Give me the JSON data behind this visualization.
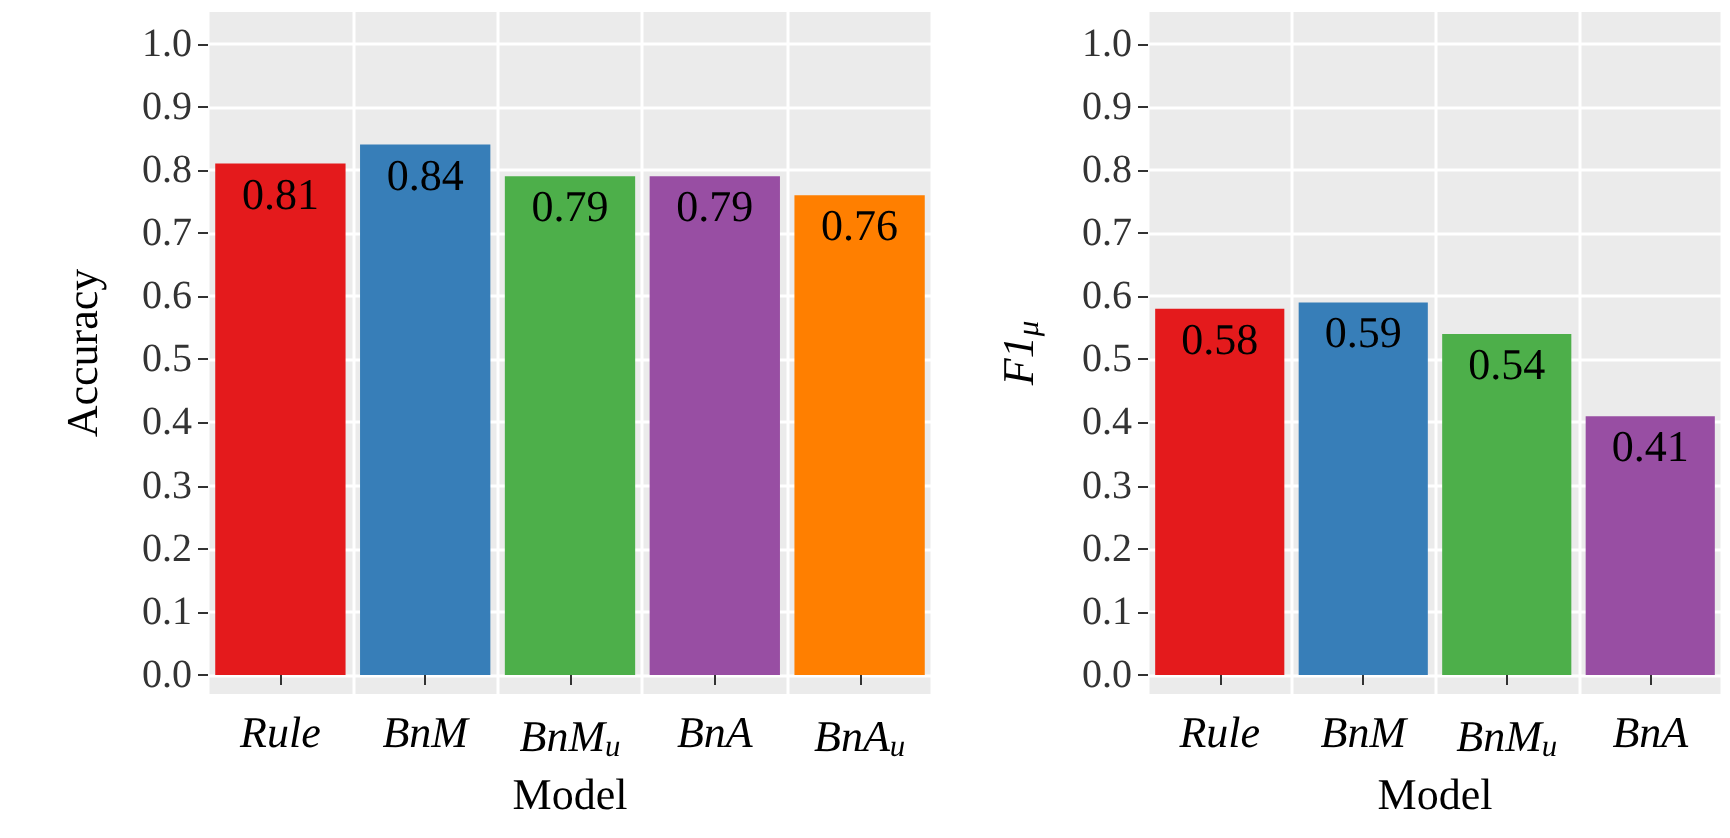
{
  "chart_data": [
    {
      "type": "bar",
      "xlabel": "Model",
      "ylabel": "Accuracy",
      "categories": [
        "Rule",
        "BnM",
        "BnM$_{u}$",
        "BnA",
        "BnA$_{u}$"
      ],
      "values": [
        0.81,
        0.84,
        0.79,
        0.79,
        0.76
      ],
      "colors": [
        "#e41a1c",
        "#377eb8",
        "#4daf4a",
        "#984ea3",
        "#ff7f00"
      ],
      "ylim": [
        -0.03,
        1.05
      ],
      "yticks": [
        {
          "value": 0,
          "label": "0.0"
        },
        {
          "value": 0.1,
          "label": "0.1"
        },
        {
          "value": 0.2,
          "label": "0.2"
        },
        {
          "value": 0.3,
          "label": "0.3"
        },
        {
          "value": 0.4,
          "label": "0.4"
        },
        {
          "value": 0.5,
          "label": "0.5"
        },
        {
          "value": 0.6,
          "label": "0.6"
        },
        {
          "value": 0.7,
          "label": "0.7"
        },
        {
          "value": 0.8,
          "label": "0.8"
        },
        {
          "value": 0.9,
          "label": "0.9"
        },
        {
          "value": 1,
          "label": "1.0"
        }
      ],
      "grid": true,
      "data_labels": true
    },
    {
      "type": "bar",
      "xlabel": "Model",
      "ylabel": "F1$_{μ}$",
      "categories": [
        "Rule",
        "BnM",
        "BnM$_{u}$",
        "BnA"
      ],
      "values": [
        0.58,
        0.59,
        0.54,
        0.41
      ],
      "colors": [
        "#e41a1c",
        "#377eb8",
        "#4daf4a",
        "#984ea3"
      ],
      "ylim": [
        -0.03,
        1.05
      ],
      "yticks": [
        {
          "value": 0,
          "label": "0.0"
        },
        {
          "value": 0.1,
          "label": "0.1"
        },
        {
          "value": 0.2,
          "label": "0.2"
        },
        {
          "value": 0.3,
          "label": "0.3"
        },
        {
          "value": 0.4,
          "label": "0.4"
        },
        {
          "value": 0.5,
          "label": "0.5"
        },
        {
          "value": 0.6,
          "label": "0.6"
        },
        {
          "value": 0.7,
          "label": "0.7"
        },
        {
          "value": 0.8,
          "label": "0.8"
        },
        {
          "value": 0.9,
          "label": "0.9"
        },
        {
          "value": 1,
          "label": "1.0"
        }
      ],
      "grid": true,
      "data_labels": true
    }
  ]
}
